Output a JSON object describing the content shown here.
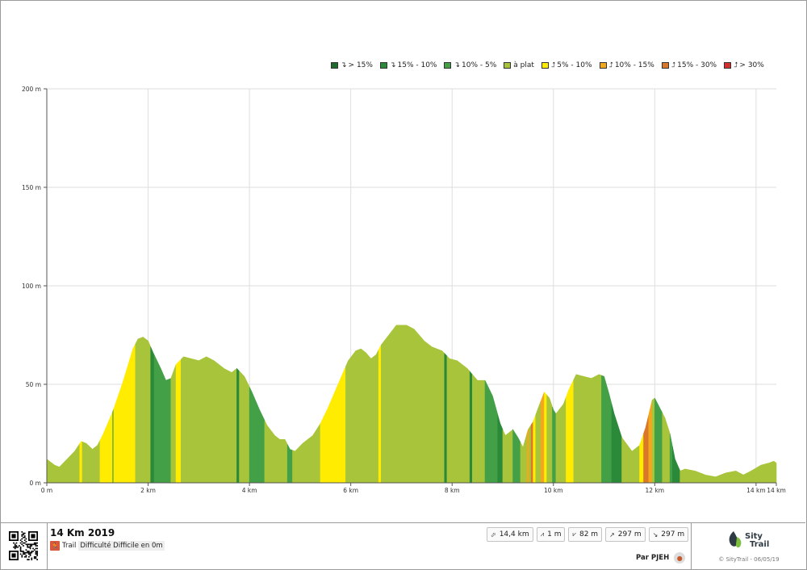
{
  "chart_data": {
    "type": "area",
    "title": "",
    "xlabel": "",
    "ylabel": "",
    "xlim": [
      0,
      14.4
    ],
    "ylim": [
      0,
      200
    ],
    "x_ticks": [
      0,
      2,
      4,
      6,
      8,
      10,
      12,
      14,
      14.4
    ],
    "x_tick_labels": [
      "0 m",
      "2 km",
      "4 km",
      "6 km",
      "8 km",
      "10 km",
      "12 km",
      "14 km",
      "14 km"
    ],
    "y_ticks": [
      0,
      50,
      100,
      150,
      200
    ],
    "y_tick_labels": [
      "0 m",
      "50 m",
      "100 m",
      "150 m",
      "200 m"
    ],
    "grid": true,
    "legend_placement": "top-right",
    "categories": [
      {
        "key": "down15",
        "label": "> 15%",
        "direction": "down",
        "color": "#1f6b2e"
      },
      {
        "key": "down10",
        "label": "15% - 10%",
        "direction": "down",
        "color": "#2b8a3a"
      },
      {
        "key": "down5",
        "label": "10% - 5%",
        "direction": "down",
        "color": "#43a047"
      },
      {
        "key": "flat",
        "label": "à plat",
        "direction": "none",
        "color": "#a8c43a"
      },
      {
        "key": "up5",
        "label": "5% - 10%",
        "direction": "up",
        "color": "#ffec00"
      },
      {
        "key": "up10",
        "label": "10% - 15%",
        "direction": "up",
        "color": "#f2a81d"
      },
      {
        "key": "up15",
        "label": "15% - 30%",
        "direction": "up",
        "color": "#d9782a"
      },
      {
        "key": "up30",
        "label": "> 30%",
        "direction": "up",
        "color": "#d32f2f"
      }
    ],
    "profile": [
      [
        0,
        12
      ],
      [
        0.15,
        9
      ],
      [
        0.25,
        8
      ],
      [
        0.4,
        12
      ],
      [
        0.55,
        16
      ],
      [
        0.68,
        21
      ],
      [
        0.78,
        20
      ],
      [
        0.9,
        17
      ],
      [
        1.0,
        19
      ],
      [
        1.1,
        24
      ],
      [
        1.3,
        36
      ],
      [
        1.5,
        51
      ],
      [
        1.7,
        68
      ],
      [
        1.8,
        73
      ],
      [
        1.9,
        74
      ],
      [
        2.0,
        72
      ],
      [
        2.1,
        66
      ],
      [
        2.25,
        58
      ],
      [
        2.35,
        52
      ],
      [
        2.45,
        53
      ],
      [
        2.55,
        60
      ],
      [
        2.7,
        64
      ],
      [
        2.85,
        63
      ],
      [
        3.0,
        62
      ],
      [
        3.15,
        64
      ],
      [
        3.3,
        62
      ],
      [
        3.5,
        58
      ],
      [
        3.65,
        56
      ],
      [
        3.75,
        58
      ],
      [
        3.9,
        54
      ],
      [
        4.05,
        46
      ],
      [
        4.2,
        37
      ],
      [
        4.35,
        29
      ],
      [
        4.5,
        24
      ],
      [
        4.6,
        22
      ],
      [
        4.7,
        22
      ],
      [
        4.8,
        17
      ],
      [
        4.9,
        16
      ],
      [
        5.05,
        20
      ],
      [
        5.25,
        24
      ],
      [
        5.4,
        30
      ],
      [
        5.55,
        38
      ],
      [
        5.75,
        50
      ],
      [
        5.95,
        62
      ],
      [
        6.1,
        67
      ],
      [
        6.2,
        68
      ],
      [
        6.3,
        66
      ],
      [
        6.4,
        63
      ],
      [
        6.5,
        65
      ],
      [
        6.6,
        70
      ],
      [
        6.75,
        75
      ],
      [
        6.9,
        80
      ],
      [
        7.1,
        80
      ],
      [
        7.25,
        78
      ],
      [
        7.45,
        72
      ],
      [
        7.6,
        69
      ],
      [
        7.8,
        67
      ],
      [
        7.95,
        63
      ],
      [
        8.1,
        62
      ],
      [
        8.3,
        58
      ],
      [
        8.5,
        52
      ],
      [
        8.65,
        52
      ],
      [
        8.8,
        44
      ],
      [
        8.95,
        30
      ],
      [
        9.05,
        24
      ],
      [
        9.15,
        26
      ],
      [
        9.2,
        27
      ],
      [
        9.3,
        23
      ],
      [
        9.4,
        18
      ],
      [
        9.5,
        27
      ],
      [
        9.6,
        31
      ],
      [
        9.7,
        38
      ],
      [
        9.82,
        46
      ],
      [
        9.92,
        43
      ],
      [
        10.0,
        37
      ],
      [
        10.05,
        35
      ],
      [
        10.2,
        40
      ],
      [
        10.3,
        47
      ],
      [
        10.45,
        55
      ],
      [
        10.6,
        54
      ],
      [
        10.75,
        53
      ],
      [
        10.9,
        55
      ],
      [
        11.0,
        54
      ],
      [
        11.1,
        45
      ],
      [
        11.2,
        35
      ],
      [
        11.35,
        23
      ],
      [
        11.55,
        16
      ],
      [
        11.7,
        19
      ],
      [
        11.82,
        28
      ],
      [
        11.95,
        42
      ],
      [
        12.0,
        43
      ],
      [
        12.1,
        38
      ],
      [
        12.2,
        33
      ],
      [
        12.3,
        25
      ],
      [
        12.4,
        12
      ],
      [
        12.5,
        6
      ],
      [
        12.6,
        7
      ],
      [
        12.8,
        6
      ],
      [
        13.0,
        4
      ],
      [
        13.2,
        3
      ],
      [
        13.4,
        5
      ],
      [
        13.6,
        6
      ],
      [
        13.75,
        4
      ],
      [
        13.9,
        6
      ],
      [
        14.1,
        9
      ],
      [
        14.25,
        10
      ],
      [
        14.35,
        11
      ],
      [
        14.4,
        10
      ]
    ],
    "segments": [
      [
        0,
        0.65,
        "flat"
      ],
      [
        0.65,
        0.7,
        "up5"
      ],
      [
        0.7,
        1.05,
        "flat"
      ],
      [
        1.05,
        1.3,
        "up5"
      ],
      [
        1.3,
        1.32,
        "down5"
      ],
      [
        1.32,
        1.75,
        "up5"
      ],
      [
        1.75,
        2.05,
        "flat"
      ],
      [
        2.05,
        2.12,
        "down10"
      ],
      [
        2.12,
        2.45,
        "down5"
      ],
      [
        2.45,
        2.55,
        "flat"
      ],
      [
        2.55,
        2.65,
        "up5"
      ],
      [
        2.65,
        3.75,
        "flat"
      ],
      [
        3.75,
        3.8,
        "down10"
      ],
      [
        3.8,
        4.0,
        "flat"
      ],
      [
        4.0,
        4.3,
        "down5"
      ],
      [
        4.3,
        4.75,
        "flat"
      ],
      [
        4.75,
        4.85,
        "down5"
      ],
      [
        4.85,
        5.4,
        "flat"
      ],
      [
        5.4,
        5.9,
        "up5"
      ],
      [
        5.9,
        6.55,
        "flat"
      ],
      [
        6.55,
        6.6,
        "up5"
      ],
      [
        6.6,
        7.85,
        "flat"
      ],
      [
        7.85,
        7.9,
        "down10"
      ],
      [
        7.9,
        8.35,
        "flat"
      ],
      [
        8.35,
        8.4,
        "down10"
      ],
      [
        8.4,
        8.65,
        "flat"
      ],
      [
        8.65,
        8.9,
        "down5"
      ],
      [
        8.9,
        9.0,
        "down10"
      ],
      [
        9.0,
        9.2,
        "flat"
      ],
      [
        9.2,
        9.35,
        "down5"
      ],
      [
        9.35,
        9.48,
        "flat"
      ],
      [
        9.48,
        9.52,
        "up10"
      ],
      [
        9.52,
        9.56,
        "flat"
      ],
      [
        9.56,
        9.6,
        "up15"
      ],
      [
        9.6,
        9.65,
        "up5"
      ],
      [
        9.65,
        9.75,
        "flat"
      ],
      [
        9.75,
        9.82,
        "up10"
      ],
      [
        9.82,
        9.87,
        "up5"
      ],
      [
        9.87,
        9.98,
        "flat"
      ],
      [
        9.98,
        10.05,
        "down5"
      ],
      [
        10.05,
        10.25,
        "flat"
      ],
      [
        10.25,
        10.4,
        "up5"
      ],
      [
        10.4,
        10.95,
        "flat"
      ],
      [
        10.95,
        11.15,
        "down5"
      ],
      [
        11.15,
        11.35,
        "down10"
      ],
      [
        11.35,
        11.7,
        "flat"
      ],
      [
        11.7,
        11.78,
        "up5"
      ],
      [
        11.78,
        11.88,
        "up15"
      ],
      [
        11.88,
        11.95,
        "up10"
      ],
      [
        11.95,
        12.0,
        "flat"
      ],
      [
        12.0,
        12.15,
        "down5"
      ],
      [
        12.15,
        12.3,
        "flat"
      ],
      [
        12.3,
        12.35,
        "down5"
      ],
      [
        12.35,
        12.5,
        "down10"
      ],
      [
        12.5,
        14.4,
        "flat"
      ]
    ]
  },
  "footer": {
    "title": "14 Km 2019",
    "activity": "Trail",
    "difficulty": "Difficulté Difficile en 0m",
    "stats": [
      {
        "icon": "distance-icon",
        "glyph": "⬀",
        "value": "14,4 km"
      },
      {
        "icon": "min-altitude-icon",
        "glyph": "⩘",
        "value": "1 m"
      },
      {
        "icon": "max-altitude-icon",
        "glyph": "⩗",
        "value": "82 m"
      },
      {
        "icon": "ascent-icon",
        "glyph": "↗",
        "value": "297 m"
      },
      {
        "icon": "descent-icon",
        "glyph": "↘",
        "value": "297 m"
      }
    ],
    "author": "Par PJEH",
    "brand_line1": "Sity",
    "brand_line2": "Trail",
    "copyright": "© SityTrail - 06/05/19"
  }
}
